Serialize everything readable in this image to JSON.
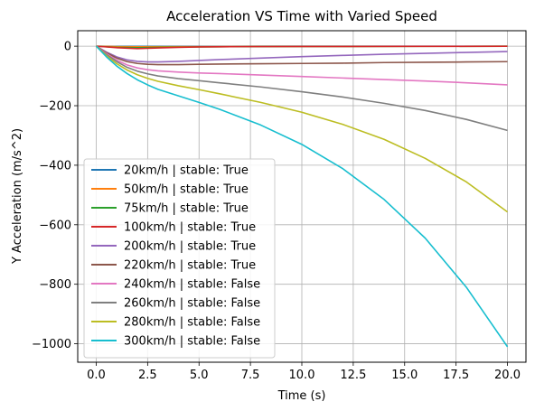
{
  "chart_data": {
    "type": "line",
    "title": "Acceleration VS Time with Varied Speed",
    "xlabel": "Time (s)",
    "ylabel": "Y Acceleration (m/s^2)",
    "xlim": [
      -0.9,
      20.9
    ],
    "ylim": [
      -1062,
      52
    ],
    "xticks": [
      0,
      2.5,
      5,
      7.5,
      10,
      12.5,
      15,
      17.5,
      20
    ],
    "xtick_labels": [
      "0.0",
      "2.5",
      "5.0",
      "7.5",
      "10.0",
      "12.5",
      "15.0",
      "17.5",
      "20.0"
    ],
    "yticks": [
      0,
      -200,
      -400,
      -600,
      -800,
      -1000
    ],
    "ytick_labels": [
      "0",
      "−200",
      "−400",
      "−600",
      "−800",
      "−1000"
    ],
    "grid": true,
    "legend_position": "lower-left",
    "series": [
      {
        "name": "20km/h | stable: True",
        "color": "#1f77b4",
        "x": [
          0,
          1,
          2,
          4,
          8,
          12,
          16,
          20
        ],
        "y": [
          0,
          -0.5,
          -0.6,
          -0.5,
          -0.3,
          -0.2,
          -0.1,
          -0.1
        ]
      },
      {
        "name": "50km/h | stable: True",
        "color": "#ff7f0e",
        "x": [
          0,
          1,
          2,
          4,
          8,
          12,
          16,
          20
        ],
        "y": [
          0,
          -1.5,
          -2,
          -1.5,
          -1,
          -0.6,
          -0.4,
          -0.3
        ]
      },
      {
        "name": "75km/h | stable: True",
        "color": "#2ca02c",
        "x": [
          0,
          1,
          2,
          3,
          4,
          6,
          10,
          15,
          20
        ],
        "y": [
          0,
          -4,
          -5,
          -4,
          -3,
          -2,
          -1,
          -0.5,
          -0.3
        ]
      },
      {
        "name": "100km/h | stable: True",
        "color": "#d62728",
        "x": [
          0,
          1,
          2,
          3,
          4,
          5,
          7,
          10,
          15,
          20
        ],
        "y": [
          0,
          -5,
          -8,
          -6,
          -4,
          -2.5,
          -1.5,
          -1,
          -0.6,
          -0.4
        ]
      },
      {
        "name": "200km/h | stable: True",
        "color": "#9467bd",
        "x": [
          0,
          0.5,
          1,
          1.5,
          2,
          2.5,
          3,
          4,
          5,
          6,
          8,
          10,
          12,
          14,
          16,
          18,
          20
        ],
        "y": [
          0,
          -20,
          -36,
          -46,
          -51,
          -53,
          -53,
          -51,
          -48,
          -45,
          -40,
          -35,
          -31,
          -27,
          -24,
          -21,
          -18
        ]
      },
      {
        "name": "220km/h | stable: True",
        "color": "#8c564b",
        "x": [
          0,
          0.5,
          1,
          1.5,
          2,
          2.5,
          3,
          4,
          5,
          6,
          8,
          10,
          12,
          14,
          16,
          18,
          20
        ],
        "y": [
          0,
          -22,
          -40,
          -52,
          -58,
          -61,
          -62,
          -62,
          -61,
          -60,
          -59,
          -58,
          -57,
          -55,
          -54,
          -53,
          -52
        ]
      },
      {
        "name": "240km/h | stable: False",
        "color": "#e377c2",
        "x": [
          0,
          0.5,
          1,
          1.5,
          2,
          2.5,
          3,
          4,
          5,
          6,
          8,
          10,
          12,
          14,
          16,
          18,
          20
        ],
        "y": [
          0,
          -25,
          -47,
          -63,
          -73,
          -79,
          -83,
          -87,
          -90,
          -92,
          -97,
          -102,
          -107,
          -112,
          -117,
          -123,
          -130
        ]
      },
      {
        "name": "260km/h | stable: False",
        "color": "#7f7f7f",
        "x": [
          0,
          0.5,
          1,
          1.5,
          2,
          2.5,
          3,
          4,
          5,
          6,
          8,
          10,
          12,
          14,
          16,
          18,
          20
        ],
        "y": [
          0,
          -28,
          -52,
          -71,
          -84,
          -93,
          -100,
          -109,
          -116,
          -123,
          -137,
          -153,
          -171,
          -192,
          -216,
          -246,
          -283
        ]
      },
      {
        "name": "280km/h | stable: False",
        "color": "#bcbd22",
        "x": [
          0,
          0.5,
          1,
          1.5,
          2,
          2.5,
          3,
          4,
          5,
          6,
          8,
          10,
          12,
          14,
          16,
          18,
          20
        ],
        "y": [
          0,
          -32,
          -59,
          -80,
          -96,
          -108,
          -118,
          -133,
          -146,
          -160,
          -189,
          -222,
          -263,
          -313,
          -377,
          -456,
          -557
        ]
      },
      {
        "name": "300km/h | stable: False",
        "color": "#17becf",
        "x": [
          0,
          0.5,
          1,
          1.5,
          2,
          2.5,
          3,
          4,
          5,
          6,
          8,
          10,
          12,
          14,
          16,
          18,
          20
        ],
        "y": [
          0,
          -36,
          -67,
          -92,
          -113,
          -130,
          -145,
          -167,
          -189,
          -212,
          -265,
          -330,
          -412,
          -515,
          -645,
          -810,
          -1010
        ]
      }
    ]
  }
}
